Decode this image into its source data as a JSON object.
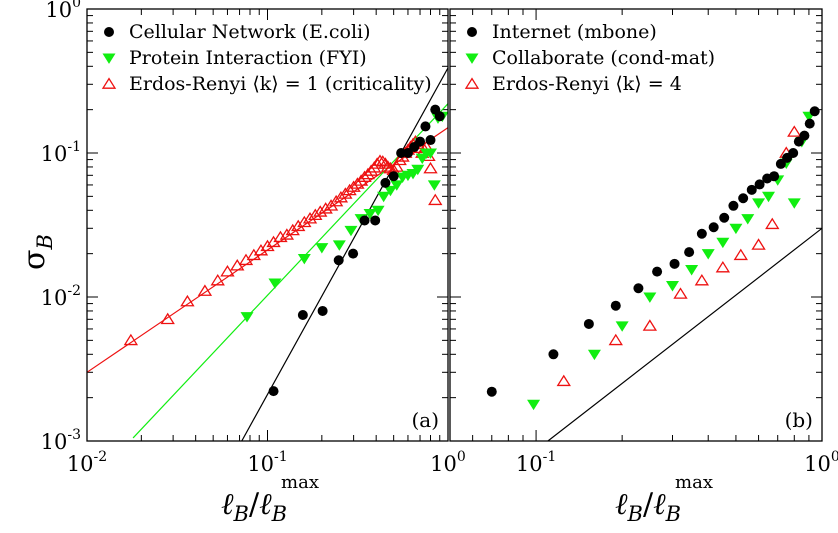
{
  "figure": {
    "ylabel_main": "σ",
    "ylabel_sub": "B",
    "xlabel_main": "ℓ",
    "xlabel_sub": "B",
    "xlabel_slash": "/",
    "xlabel_sup": "max"
  },
  "chart_data": [
    {
      "type": "scatter",
      "panel_label": "(a)",
      "xscale": "log",
      "yscale": "log",
      "xlim": [
        0.01,
        1
      ],
      "ylim": [
        0.001,
        1
      ],
      "xticks": [
        0.01,
        0.1,
        1
      ],
      "xtick_labels": [
        {
          "base": "10",
          "exp": "-2"
        },
        {
          "base": "10",
          "exp": "-1"
        },
        {
          "base": "10",
          "exp": "0"
        }
      ],
      "yticks": [
        0.001,
        0.01,
        0.1,
        1
      ],
      "ytick_labels": [
        {
          "base": "10",
          "exp": "-3"
        },
        {
          "base": "10",
          "exp": "-2"
        },
        {
          "base": "10",
          "exp": "-1"
        },
        {
          "base": "10",
          "exp": "0"
        }
      ],
      "legend_position": "top-left",
      "series": [
        {
          "name": "Cellular Network (E.coli)",
          "marker": "filled-circle",
          "color": "#000000",
          "points": [
            [
              0.108,
              0.00222
            ],
            [
              0.157,
              0.0075
            ],
            [
              0.202,
              0.008
            ],
            [
              0.248,
              0.018
            ],
            [
              0.298,
              0.02
            ],
            [
              0.345,
              0.034
            ],
            [
              0.395,
              0.034
            ],
            [
              0.45,
              0.062
            ],
            [
              0.5,
              0.069
            ],
            [
              0.55,
              0.1
            ],
            [
              0.6,
              0.1
            ],
            [
              0.65,
              0.11
            ],
            [
              0.7,
              0.12
            ],
            [
              0.75,
              0.153
            ],
            [
              0.8,
              0.123
            ],
            [
              0.85,
              0.2
            ],
            [
              0.9,
              0.18
            ]
          ]
        },
        {
          "name": "Protein Interaction (FYI)",
          "marker": "filled-triangle-down",
          "color": "#11ee11",
          "points": [
            [
              0.077,
              0.0073
            ],
            [
              0.11,
              0.0125
            ],
            [
              0.16,
              0.0185
            ],
            [
              0.2,
              0.022
            ],
            [
              0.25,
              0.023
            ],
            [
              0.29,
              0.029
            ],
            [
              0.33,
              0.035
            ],
            [
              0.37,
              0.038
            ],
            [
              0.41,
              0.04
            ],
            [
              0.44,
              0.05
            ],
            [
              0.48,
              0.055
            ],
            [
              0.52,
              0.06
            ],
            [
              0.56,
              0.068
            ],
            [
              0.6,
              0.07
            ],
            [
              0.64,
              0.072
            ],
            [
              0.68,
              0.077
            ],
            [
              0.72,
              0.092
            ],
            [
              0.76,
              0.1
            ],
            [
              0.8,
              0.1
            ],
            [
              0.84,
              0.06
            ],
            [
              0.88,
              0.175
            ],
            [
              0.93,
              0.18
            ]
          ]
        },
        {
          "name": "Erdos-Renyi ⟨k⟩ = 1 (criticality)",
          "marker": "open-triangle-up",
          "color": "#ee1111",
          "points": [
            [
              0.0175,
              0.005
            ],
            [
              0.028,
              0.007
            ],
            [
              0.036,
              0.0093
            ],
            [
              0.045,
              0.011
            ],
            [
              0.053,
              0.013
            ],
            [
              0.06,
              0.015
            ],
            [
              0.068,
              0.0165
            ],
            [
              0.076,
              0.018
            ],
            [
              0.084,
              0.0195
            ],
            [
              0.092,
              0.021
            ],
            [
              0.1,
              0.0225
            ],
            [
              0.108,
              0.024
            ],
            [
              0.118,
              0.026
            ],
            [
              0.128,
              0.027
            ],
            [
              0.138,
              0.029
            ],
            [
              0.148,
              0.031
            ],
            [
              0.16,
              0.033
            ],
            [
              0.172,
              0.035
            ],
            [
              0.184,
              0.037
            ],
            [
              0.196,
              0.039
            ],
            [
              0.21,
              0.041
            ],
            [
              0.225,
              0.043
            ],
            [
              0.24,
              0.046
            ],
            [
              0.255,
              0.049
            ],
            [
              0.27,
              0.052
            ],
            [
              0.285,
              0.055
            ],
            [
              0.3,
              0.058
            ],
            [
              0.315,
              0.061
            ],
            [
              0.33,
              0.064
            ],
            [
              0.345,
              0.068
            ],
            [
              0.36,
              0.071
            ],
            [
              0.375,
              0.075
            ],
            [
              0.39,
              0.079
            ],
            [
              0.405,
              0.084
            ],
            [
              0.42,
              0.088
            ],
            [
              0.435,
              0.087
            ],
            [
              0.45,
              0.084
            ],
            [
              0.465,
              0.08
            ],
            [
              0.48,
              0.078
            ],
            [
              0.5,
              0.076
            ],
            [
              0.52,
              0.08
            ],
            [
              0.54,
              0.089
            ],
            [
              0.56,
              0.094
            ],
            [
              0.58,
              0.1
            ],
            [
              0.6,
              0.105
            ],
            [
              0.62,
              0.11
            ],
            [
              0.64,
              0.115
            ],
            [
              0.66,
              0.12
            ],
            [
              0.68,
              0.115
            ],
            [
              0.7,
              0.108
            ],
            [
              0.72,
              0.1
            ],
            [
              0.74,
              0.105
            ],
            [
              0.76,
              0.11
            ],
            [
              0.78,
              0.095
            ],
            [
              0.8,
              0.078
            ],
            [
              0.85,
              0.047
            ]
          ]
        }
      ],
      "fit_lines": [
        {
          "color": "#ee1111",
          "from": [
            0.01,
            0.003
          ],
          "to": [
            1,
            0.15
          ]
        },
        {
          "color": "#11ee11",
          "from": [
            0.018,
            0.00105
          ],
          "to": [
            1,
            0.22
          ]
        },
        {
          "color": "#000000",
          "from": [
            0.072,
            0.001
          ],
          "to": [
            1,
            0.39
          ]
        }
      ]
    },
    {
      "type": "scatter",
      "panel_label": "(b)",
      "xscale": "log",
      "yscale": "log",
      "xlim": [
        0.05,
        1
      ],
      "ylim": [
        0.001,
        1
      ],
      "xticks": [
        0.1,
        1
      ],
      "xtick_labels": [
        {
          "base": "10",
          "exp": "-1"
        },
        {
          "base": "10",
          "exp": "0"
        }
      ],
      "yticks": [
        0.001,
        0.01,
        0.1,
        1
      ],
      "ytick_labels": [],
      "legend_position": "top-left",
      "series": [
        {
          "name": "Internet (mbone)",
          "marker": "filled-circle",
          "color": "#000000",
          "points": [
            [
              0.07,
              0.0022
            ],
            [
              0.115,
              0.004
            ],
            [
              0.153,
              0.0065
            ],
            [
              0.19,
              0.0087
            ],
            [
              0.228,
              0.0115
            ],
            [
              0.265,
              0.015
            ],
            [
              0.305,
              0.017
            ],
            [
              0.343,
              0.0205
            ],
            [
              0.38,
              0.0275
            ],
            [
              0.418,
              0.0305
            ],
            [
              0.455,
              0.0355
            ],
            [
              0.49,
              0.043
            ],
            [
              0.53,
              0.0485
            ],
            [
              0.568,
              0.0555
            ],
            [
              0.605,
              0.0605
            ],
            [
              0.643,
              0.0665
            ],
            [
              0.68,
              0.069
            ],
            [
              0.718,
              0.084
            ],
            [
              0.755,
              0.0925
            ],
            [
              0.793,
              0.1
            ],
            [
              0.83,
              0.12
            ],
            [
              0.868,
              0.132
            ],
            [
              0.906,
              0.16
            ],
            [
              0.943,
              0.195
            ]
          ]
        },
        {
          "name": "Collaborate (cond-mat)",
          "marker": "filled-triangle-down",
          "color": "#11ee11",
          "points": [
            [
              0.098,
              0.0018
            ],
            [
              0.16,
              0.004
            ],
            [
              0.2,
              0.0063
            ],
            [
              0.25,
              0.01
            ],
            [
              0.3,
              0.012
            ],
            [
              0.35,
              0.0155
            ],
            [
              0.4,
              0.02
            ],
            [
              0.45,
              0.024
            ],
            [
              0.5,
              0.03
            ],
            [
              0.55,
              0.035
            ],
            [
              0.6,
              0.045
            ],
            [
              0.65,
              0.05
            ],
            [
              0.7,
              0.065
            ],
            [
              0.75,
              0.085
            ],
            [
              0.8,
              0.045
            ],
            [
              0.85,
              0.12
            ],
            [
              0.9,
              0.18
            ]
          ]
        },
        {
          "name": "Erdos-Renyi ⟨k⟩ = 4",
          "marker": "open-triangle-up",
          "color": "#ee1111",
          "points": [
            [
              0.125,
              0.0026
            ],
            [
              0.19,
              0.005
            ],
            [
              0.25,
              0.0063
            ],
            [
              0.32,
              0.0105
            ],
            [
              0.38,
              0.013
            ],
            [
              0.45,
              0.016
            ],
            [
              0.52,
              0.0195
            ],
            [
              0.6,
              0.023
            ],
            [
              0.67,
              0.032
            ],
            [
              0.75,
              0.1
            ],
            [
              0.8,
              0.14
            ]
          ]
        }
      ],
      "fit_lines": [
        {
          "color": "#000000",
          "from": [
            0.11,
            0.001
          ],
          "to": [
            1,
            0.03
          ]
        }
      ]
    }
  ]
}
